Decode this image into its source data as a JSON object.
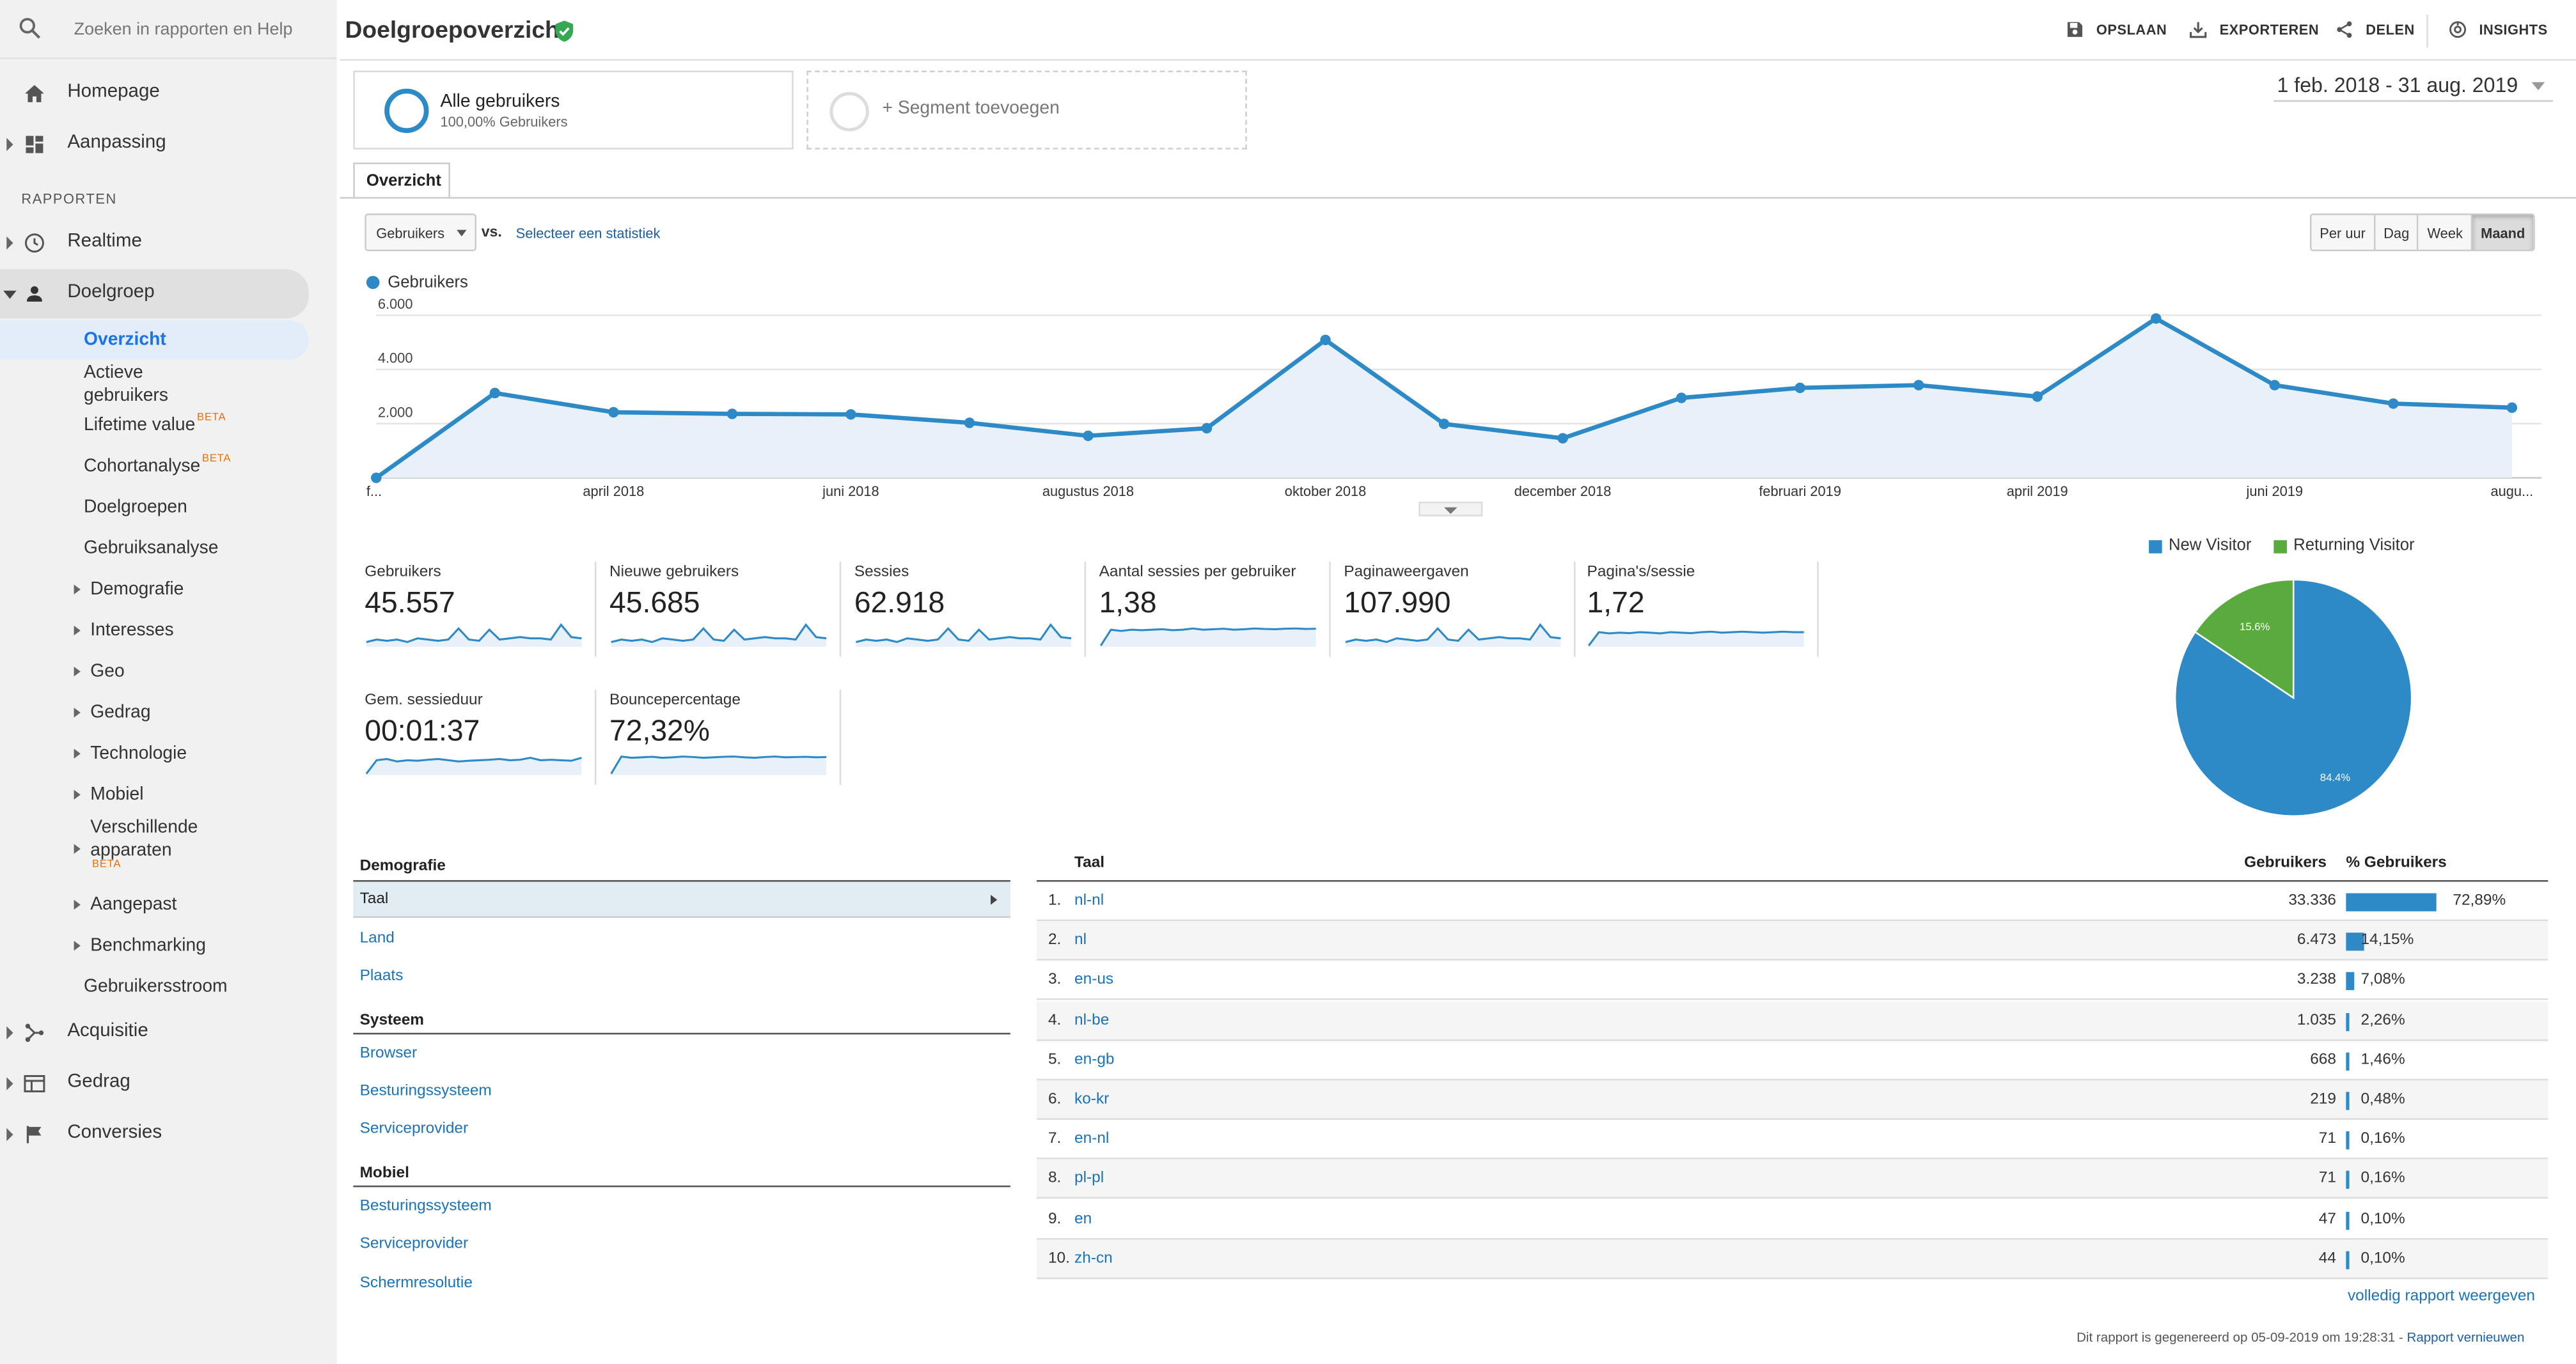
{
  "search": {
    "placeholder": "Zoeken in rapporten en Help"
  },
  "nav": {
    "homepage": "Homepage",
    "aanpassing": "Aanpassing",
    "section_rapporten": "RAPPORTEN",
    "realtime": "Realtime",
    "doelgroep": "Doelgroep",
    "acquisitie": "Acquisitie",
    "gedrag": "Gedrag",
    "conversies": "Conversies"
  },
  "subnav": {
    "overzicht": "Overzicht",
    "actieve": "Actieve gebruikers",
    "lifetime": "Lifetime value",
    "cohort": "Cohortanalyse",
    "doelgroepen": "Doelgroepen",
    "gebruiksanalyse": "Gebruiksanalyse",
    "demografie": "Demografie",
    "interesses": "Interesses",
    "geo": "Geo",
    "gedrag": "Gedrag",
    "technologie": "Technologie",
    "mobiel": "Mobiel",
    "apparaten": "Verschillende apparaten",
    "aangepast": "Aangepast",
    "benchmarking": "Benchmarking",
    "stroom": "Gebruikersstroom",
    "beta": "BETA"
  },
  "header": {
    "title": "Doelgroepoverzicht",
    "opslaan": "OPSLAAN",
    "exporteren": "EXPORTEREN",
    "delen": "DELEN",
    "insights": "INSIGHTS"
  },
  "segments": {
    "all_name": "Alle gebruikers",
    "all_pct": "100,00% Gebruikers",
    "add": "+ Segment toevoegen"
  },
  "daterange": "1 feb. 2018 - 31 aug. 2019",
  "tabs": {
    "overzicht": "Overzicht"
  },
  "controls": {
    "metric": "Gebruikers",
    "vs": "vs.",
    "select_stat": "Selecteer een statistiek",
    "granularity": [
      "Per uur",
      "Dag",
      "Week",
      "Maand"
    ]
  },
  "chart_data": {
    "type": "line",
    "series": [
      {
        "name": "Gebruikers",
        "values": [
          0,
          3130,
          2420,
          2360,
          2340,
          2030,
          1550,
          1830,
          5090,
          1990,
          1460,
          2950,
          3320,
          3420,
          3000,
          5880,
          3420,
          2740,
          2590
        ]
      }
    ],
    "x": [
      "feb 2018",
      "mrt 2018",
      "apr 2018",
      "mei 2018",
      "jun 2018",
      "jul 2018",
      "aug 2018",
      "sep 2018",
      "okt 2018",
      "nov 2018",
      "dec 2018",
      "jan 2019",
      "feb 2019",
      "mrt 2019",
      "apr 2019",
      "mei 2019",
      "jun 2019",
      "jul 2019",
      "aug 2019"
    ],
    "x_tick_labels": [
      "f...",
      "april 2018",
      "juni 2018",
      "augustus 2018",
      "oktober 2018",
      "december 2018",
      "februari 2019",
      "april 2019",
      "juni 2019",
      "augu..."
    ],
    "y_ticks": [
      "6.000",
      "4.000",
      "2.000"
    ],
    "ylim": [
      0,
      6000
    ],
    "color": "#2d8ac7"
  },
  "kpis": [
    {
      "label": "Gebruikers",
      "value": "45.557"
    },
    {
      "label": "Nieuwe gebruikers",
      "value": "45.685"
    },
    {
      "label": "Sessies",
      "value": "62.918"
    },
    {
      "label": "Aantal sessies per gebruiker",
      "value": "1,38"
    },
    {
      "label": "Paginaweergaven",
      "value": "107.990"
    },
    {
      "label": "Pagina's/sessie",
      "value": "1,72"
    },
    {
      "label": "Gem. sessieduur",
      "value": "00:01:37"
    },
    {
      "label": "Bouncepercentage",
      "value": "72,32%"
    }
  ],
  "pie": {
    "legend": [
      "New Visitor",
      "Returning Visitor"
    ],
    "values": [
      84.4,
      15.6
    ],
    "labels": [
      "84.4%",
      "15.6%"
    ],
    "colors": [
      "#2d8ac7",
      "#5aab3e"
    ]
  },
  "demografie": {
    "head": "Demografie",
    "selected": "Taal",
    "links": [
      "Land",
      "Plaats"
    ],
    "systeem_head": "Systeem",
    "systeem": [
      "Browser",
      "Besturingssysteem",
      "Serviceprovider"
    ],
    "mobiel_head": "Mobiel",
    "mobiel": [
      "Besturingssysteem",
      "Serviceprovider",
      "Schermresolutie"
    ]
  },
  "table": {
    "col_taal": "Taal",
    "col_gebruikers": "Gebruikers",
    "col_pct": "% Gebruikers",
    "rows": [
      {
        "n": "1.",
        "lang": "nl-nl",
        "users": "33.336",
        "pct": "72,89%",
        "frac": 0.7289
      },
      {
        "n": "2.",
        "lang": "nl",
        "users": "6.473",
        "pct": "14,15%",
        "frac": 0.1415
      },
      {
        "n": "3.",
        "lang": "en-us",
        "users": "3.238",
        "pct": "7,08%",
        "frac": 0.0708
      },
      {
        "n": "4.",
        "lang": "nl-be",
        "users": "1.035",
        "pct": "2,26%",
        "frac": 0.0226
      },
      {
        "n": "5.",
        "lang": "en-gb",
        "users": "668",
        "pct": "1,46%",
        "frac": 0.0146
      },
      {
        "n": "6.",
        "lang": "ko-kr",
        "users": "219",
        "pct": "0,48%",
        "frac": 0.0048
      },
      {
        "n": "7.",
        "lang": "en-nl",
        "users": "71",
        "pct": "0,16%",
        "frac": 0.0016
      },
      {
        "n": "8.",
        "lang": "pl-pl",
        "users": "71",
        "pct": "0,16%",
        "frac": 0.0016
      },
      {
        "n": "9.",
        "lang": "en",
        "users": "47",
        "pct": "0,10%",
        "frac": 0.001
      },
      {
        "n": "10.",
        "lang": "zh-cn",
        "users": "44",
        "pct": "0,10%",
        "frac": 0.001
      }
    ],
    "full_report": "volledig rapport weergeven"
  },
  "footer": {
    "text": "Dit rapport is gegenereerd op 05-09-2019 om 19:28:31 - ",
    "link": "Rapport vernieuwen"
  }
}
